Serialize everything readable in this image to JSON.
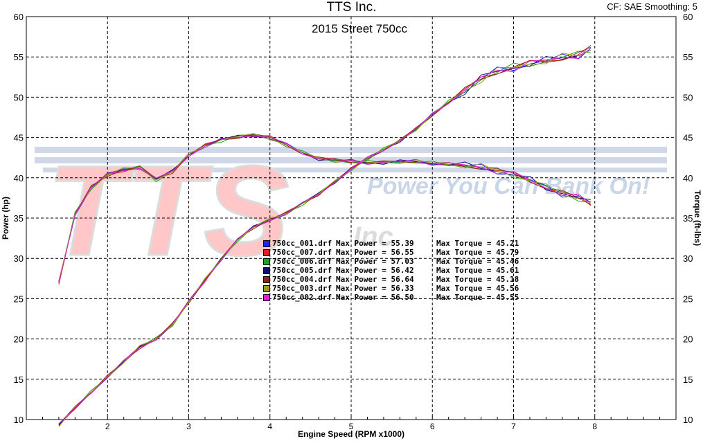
{
  "header": {
    "company": "TTS Inc.",
    "settings": "CF: SAE  Smoothing: 5"
  },
  "watermark": {
    "logo_text": "TTS",
    "logo_suffix": "Inc",
    "tagline": "Power You Can Bank On!"
  },
  "chart_data": {
    "type": "line",
    "title": "2015 Street 750cc",
    "xlabel": "Engine Speed (RPM x1000)",
    "ylabel_left": "Power (hp)",
    "ylabel_right": "Torque (ft-lbs)",
    "xlim": [
      1.0,
      9.0
    ],
    "ylim_left": [
      10,
      60
    ],
    "ylim_right": [
      10,
      60
    ],
    "x_ticks": [
      "2",
      "3",
      "4",
      "5",
      "6",
      "7",
      "8"
    ],
    "y_ticks": [
      "10",
      "15",
      "20",
      "25",
      "30",
      "35",
      "40",
      "45",
      "50",
      "55",
      "60"
    ],
    "grid": true,
    "legend_placement": "center",
    "rpm": [
      1.4,
      1.6,
      1.8,
      2.0,
      2.2,
      2.4,
      2.6,
      2.8,
      3.0,
      3.2,
      3.4,
      3.6,
      3.8,
      4.0,
      4.2,
      4.4,
      4.6,
      4.8,
      5.0,
      5.2,
      5.4,
      5.6,
      5.8,
      6.0,
      6.2,
      6.4,
      6.6,
      6.8,
      7.0,
      7.2,
      7.4,
      7.6,
      7.8,
      7.95
    ],
    "series": [
      {
        "name": "750cc_001.drf",
        "color": "#2020ff",
        "max_power": "55.39",
        "max_torque": "45.21"
      },
      {
        "name": "750cc_007.drf",
        "color": "#e02020",
        "max_power": "56.55",
        "max_torque": "45.79"
      },
      {
        "name": "750cc_006.drf",
        "color": "#20a020",
        "max_power": "57.03",
        "max_torque": "45.46"
      },
      {
        "name": "750cc_005.drf",
        "color": "#101070",
        "max_power": "56.42",
        "max_torque": "45.61"
      },
      {
        "name": "750cc_004.drf",
        "color": "#8b2a10",
        "max_power": "56.64",
        "max_torque": "45.18"
      },
      {
        "name": "750cc_003.drf",
        "color": "#a09a20",
        "max_power": "56.33",
        "max_torque": "45.56"
      },
      {
        "name": "750cc_002.drf",
        "color": "#e020e0",
        "max_power": "56.50",
        "max_torque": "45.55"
      }
    ],
    "power_base": [
      9.3,
      11.5,
      13.4,
      15.3,
      17.2,
      19.0,
      20.0,
      21.8,
      24.6,
      27.3,
      29.9,
      32.3,
      33.9,
      34.8,
      35.6,
      36.8,
      38.0,
      39.5,
      41.1,
      42.4,
      43.5,
      44.6,
      46.1,
      47.8,
      49.4,
      50.8,
      52.3,
      53.2,
      53.7,
      54.2,
      54.5,
      54.9,
      55.3,
      56.0
    ],
    "torque_base": [
      27.0,
      35.5,
      38.8,
      40.4,
      41.0,
      41.3,
      39.8,
      40.8,
      42.8,
      44.0,
      44.7,
      45.1,
      45.3,
      45.0,
      44.1,
      43.1,
      42.4,
      42.2,
      42.0,
      41.9,
      41.9,
      42.0,
      42.0,
      41.8,
      41.7,
      41.5,
      41.3,
      40.9,
      40.4,
      39.7,
      38.8,
      38.1,
      37.5,
      36.9
    ],
    "legend_label_power": "Max Power =",
    "legend_label_torque": "Max Torque ="
  }
}
